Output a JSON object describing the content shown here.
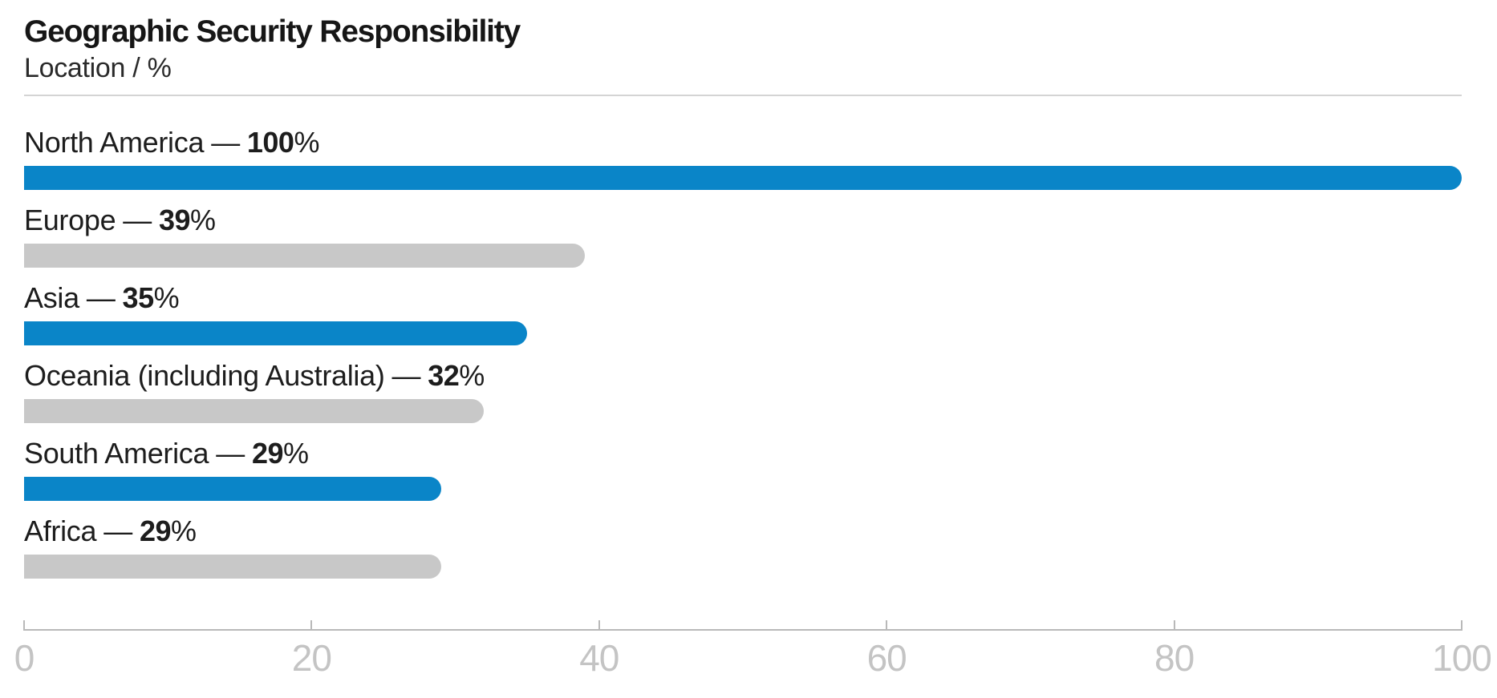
{
  "palette": {
    "blue": "#0a85c8",
    "gray": "#c8c8c8",
    "axis_line": "#b9b9b9",
    "tick_label": "#c4c4c4",
    "text": "#1d1d1d"
  },
  "chart_data": {
    "type": "bar",
    "orientation": "horizontal",
    "title": "Geographic Security Responsibility",
    "subtitle": "Location / %",
    "separator": "—",
    "unit": "%",
    "xlim": [
      0,
      100
    ],
    "x_ticks": [
      0,
      20,
      40,
      60,
      80,
      100
    ],
    "grid": false,
    "legend": false,
    "categories": [
      "North America",
      "Europe",
      "Asia",
      "Oceania (including Australia)",
      "South America",
      "Africa"
    ],
    "values": [
      100,
      39,
      35,
      32,
      29,
      29
    ],
    "bars": [
      {
        "label": "North America",
        "value": 100,
        "tone": "blue"
      },
      {
        "label": "Europe",
        "value": 39,
        "tone": "gray"
      },
      {
        "label": "Asia",
        "value": 35,
        "tone": "blue"
      },
      {
        "label": "Oceania (including Australia)",
        "value": 32,
        "tone": "gray"
      },
      {
        "label": "South America",
        "value": 29,
        "tone": "blue"
      },
      {
        "label": "Africa",
        "value": 29,
        "tone": "gray"
      }
    ]
  }
}
